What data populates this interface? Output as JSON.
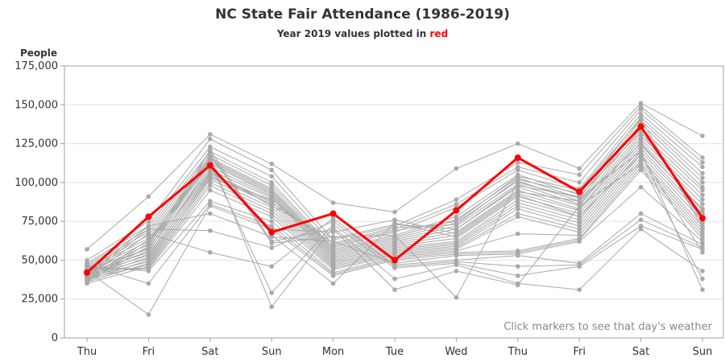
{
  "chart_data": {
    "type": "line",
    "title": "NC State Fair Attendance (1986-2019)",
    "subtitle_prefix": "Year 2019 values plotted in ",
    "subtitle_highlight": "red",
    "ylabel": "People",
    "xlabel": "",
    "note": "Click markers to see that day's weather",
    "ylim": [
      0,
      175000
    ],
    "yticks": [
      0,
      25000,
      50000,
      75000,
      100000,
      125000,
      150000,
      175000
    ],
    "ytick_labels": [
      "0",
      "25,000",
      "50,000",
      "75,000",
      "100,000",
      "125,000",
      "150,000",
      "175,000"
    ],
    "grid": true,
    "categories": [
      "Thu",
      "Fri",
      "Sat",
      "Sun",
      "Mon",
      "Tue",
      "Wed",
      "Thu",
      "Fri",
      "Sat",
      "Sun"
    ],
    "highlight_color": "#ff0000",
    "background_color": "#a9a9a9",
    "highlight_series": {
      "name": "2019",
      "values": [
        42000,
        78000,
        111000,
        68000,
        80000,
        50000,
        82000,
        116000,
        94000,
        136000,
        77000
      ]
    },
    "background_series": [
      {
        "values": [
          57000,
          91000,
          131000,
          112000,
          87000,
          81000,
          109000,
          125000,
          109000,
          151000,
          130000
        ]
      },
      {
        "values": [
          50000,
          75000,
          128000,
          108000,
          63000,
          72000,
          89000,
          113000,
          105000,
          149000,
          116000
        ]
      },
      {
        "values": [
          48000,
          72000,
          123000,
          104000,
          60000,
          70000,
          86000,
          110000,
          100000,
          147000,
          113000
        ]
      },
      {
        "values": [
          47000,
          70000,
          120000,
          100000,
          58000,
          68000,
          84000,
          108000,
          96000,
          144000,
          110000
        ]
      },
      {
        "values": [
          46000,
          68000,
          118000,
          98000,
          57000,
          66000,
          78000,
          105000,
          92000,
          142000,
          106000
        ]
      },
      {
        "values": [
          45000,
          66000,
          116000,
          96000,
          56000,
          65000,
          76000,
          103000,
          90000,
          140000,
          103000
        ]
      },
      {
        "values": [
          44000,
          64000,
          115000,
          95000,
          55000,
          64000,
          74000,
          101000,
          88000,
          138000,
          100000
        ]
      },
      {
        "values": [
          43000,
          62000,
          114000,
          94000,
          54000,
          63000,
          72000,
          99000,
          86000,
          135000,
          97000
        ]
      },
      {
        "values": [
          42000,
          60000,
          113000,
          93000,
          53000,
          62000,
          70000,
          97000,
          85000,
          132000,
          95000
        ]
      },
      {
        "values": [
          41000,
          58000,
          112000,
          92000,
          52000,
          61000,
          68000,
          95000,
          83000,
          130000,
          92000
        ]
      },
      {
        "values": [
          40000,
          56000,
          110000,
          91000,
          51000,
          60000,
          66000,
          93000,
          82000,
          128000,
          89000
        ]
      },
      {
        "values": [
          39000,
          54000,
          108000,
          90000,
          50000,
          59000,
          64000,
          91000,
          80000,
          126000,
          86000
        ]
      },
      {
        "values": [
          38000,
          52000,
          106000,
          88000,
          49000,
          58000,
          62000,
          89000,
          78000,
          124000,
          83000
        ]
      },
      {
        "values": [
          37000,
          50000,
          104000,
          86000,
          48000,
          57000,
          61000,
          87000,
          76000,
          122000,
          80000
        ]
      },
      {
        "values": [
          36000,
          48000,
          102000,
          84000,
          47000,
          56000,
          60000,
          85000,
          74000,
          120000,
          78000
        ]
      },
      {
        "values": [
          35000,
          46000,
          100000,
          82000,
          46000,
          55000,
          59000,
          83000,
          72000,
          118000,
          75000
        ]
      },
      {
        "values": [
          44000,
          45000,
          98000,
          80000,
          45000,
          54000,
          58000,
          80000,
          70000,
          116000,
          72000
        ]
      },
      {
        "values": [
          45000,
          44000,
          95000,
          78000,
          44000,
          53000,
          57000,
          78000,
          68000,
          114000,
          70000
        ]
      },
      {
        "values": [
          46000,
          43000,
          88000,
          75000,
          42000,
          52000,
          56000,
          67000,
          66000,
          112000,
          68000
        ]
      },
      {
        "values": [
          47000,
          35000,
          86000,
          72000,
          41000,
          51000,
          55000,
          56000,
          64000,
          110000,
          66000
        ]
      },
      {
        "values": [
          43000,
          15000,
          85000,
          70000,
          40000,
          50000,
          54000,
          55000,
          63000,
          108000,
          64000
        ]
      },
      {
        "values": [
          41000,
          72000,
          80000,
          65000,
          62000,
          48000,
          53000,
          54000,
          62000,
          97000,
          62000
        ]
      },
      {
        "values": [
          40000,
          70000,
          69000,
          58000,
          75000,
          47000,
          50000,
          53000,
          48000,
          80000,
          60000
        ]
      },
      {
        "values": [
          39000,
          67000,
          55000,
          46000,
          77000,
          46000,
          49000,
          46000,
          47000,
          76000,
          58000
        ]
      },
      {
        "values": [
          38000,
          63000,
          112000,
          29000,
          73000,
          45000,
          48000,
          40000,
          46000,
          72000,
          57000
        ]
      },
      {
        "values": [
          37000,
          61000,
          116000,
          20000,
          71000,
          38000,
          47000,
          35000,
          31000,
          70000,
          43000
        ]
      },
      {
        "values": [
          36000,
          59000,
          121000,
          62000,
          70000,
          31000,
          43000,
          34000,
          85000,
          112000,
          38000
        ]
      },
      {
        "values": [
          44000,
          57000,
          119000,
          61000,
          65000,
          66000,
          26000,
          100000,
          90000,
          120000,
          31000
        ]
      },
      {
        "values": [
          42000,
          55000,
          117000,
          66000,
          35000,
          74000,
          65000,
          92000,
          78000,
          118000,
          55000
        ]
      },
      {
        "values": [
          41000,
          53000,
          110000,
          70000,
          68000,
          76000,
          67000,
          94000,
          88000,
          125000,
          82000
        ]
      },
      {
        "values": [
          40000,
          51000,
          107000,
          85000,
          64000,
          73000,
          70000,
          98000,
          91000,
          133000,
          79000
        ]
      },
      {
        "values": [
          39000,
          49000,
          105000,
          87000,
          61000,
          71000,
          73000,
          102000,
          93000,
          137000,
          74000
        ]
      },
      {
        "values": [
          38000,
          47000,
          103000,
          89000,
          59000,
          69000,
          75000,
          104000,
          95000,
          141000,
          71000
        ]
      }
    ]
  }
}
